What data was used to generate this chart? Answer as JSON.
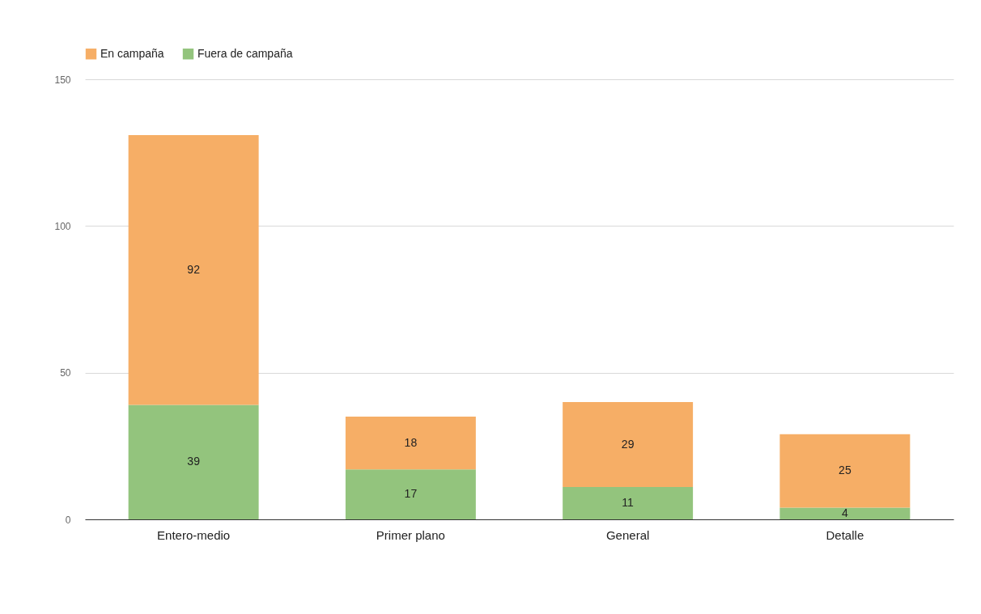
{
  "chart_data": {
    "type": "bar",
    "stacked": true,
    "categories": [
      "Entero-medio",
      "Primer plano",
      "General",
      "Detalle"
    ],
    "series": [
      {
        "name": "Fuera de campaña",
        "color": "#93c47d",
        "values": [
          39,
          17,
          11,
          4
        ]
      },
      {
        "name": "En campaña",
        "color": "#f6ae66",
        "values": [
          92,
          18,
          29,
          25
        ]
      }
    ],
    "ylim": [
      0,
      150
    ],
    "yticks": [
      0,
      50,
      100,
      150
    ],
    "grid": "y",
    "legend": "top",
    "data_labels": true
  }
}
